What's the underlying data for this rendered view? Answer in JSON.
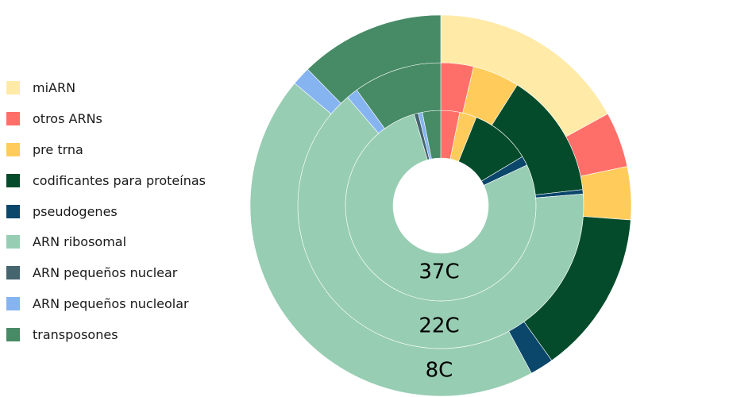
{
  "chart_data": {
    "type": "pie",
    "variant": "nested-donut",
    "legend_position": "left",
    "categories": [
      "miARN",
      "otros ARNs",
      "pre trna",
      "codificantes para proteínas",
      "pseudogenes",
      "ARN ribosomal",
      "ARN pequeños nuclear",
      "ARN pequeños nucleolar",
      "transposones"
    ],
    "colors": [
      "#ffeaa7",
      "#ff6f69",
      "#ffcc5c",
      "#034b2b",
      "#0b466b",
      "#97cdb3",
      "#45656f",
      "#85b4f1",
      "#478b66"
    ],
    "series": [
      {
        "name": "37C",
        "values": [
          0.0,
          3.2,
          2.9,
          10.3,
          1.6,
          77.5,
          0.7,
          0.7,
          3.1
        ]
      },
      {
        "name": "22C",
        "values": [
          0.0,
          3.7,
          5.3,
          14.2,
          0.5,
          65.0,
          0.0,
          1.3,
          10.0
        ]
      },
      {
        "name": "8C",
        "values": [
          17.0,
          4.7,
          4.5,
          13.9,
          2.0,
          44.0,
          0.0,
          1.6,
          12.3
        ]
      }
    ]
  }
}
